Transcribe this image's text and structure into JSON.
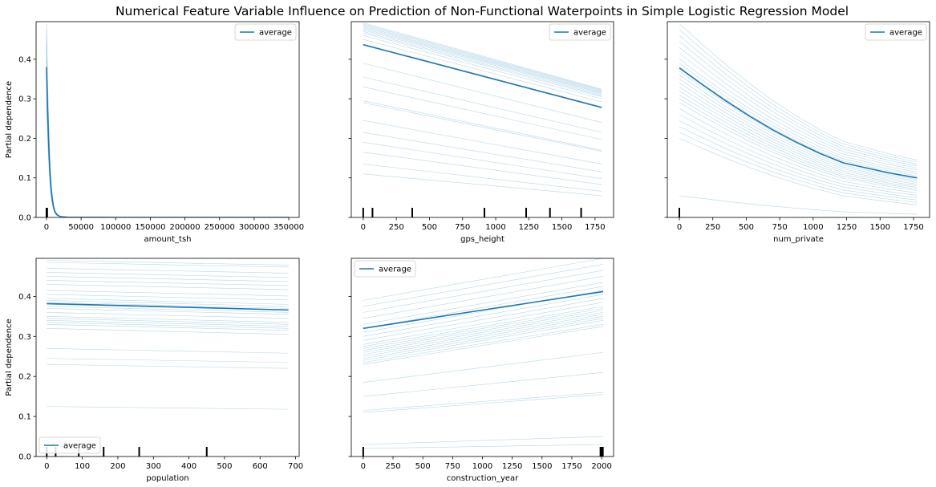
{
  "figure": {
    "title": "Numerical Feature Variable Influence on Prediction of Non-Functional Waterpoints in Simple Logistic Regression Model"
  },
  "colors": {
    "ice": "#9ecae1",
    "average": "#1f77b4",
    "rug": "#000000",
    "frame": "#000000"
  },
  "chart_data": [
    {
      "type": "line",
      "feature": "amount_tsh",
      "xlabel": "amount_tsh",
      "ylabel": "Partial dependence",
      "xlim": [
        -15000,
        365000
      ],
      "ylim": [
        0,
        0.495
      ],
      "xticks": [
        0,
        50000,
        100000,
        150000,
        200000,
        250000,
        300000,
        350000
      ],
      "yticks": [
        0.0,
        0.1,
        0.2,
        0.3,
        0.4
      ],
      "show_yticklabels": true,
      "legend": {
        "label": "average",
        "position": "top-right"
      },
      "series": [
        {
          "name": "average",
          "x": [
            0,
            2000,
            4000,
            6000,
            8000,
            10000,
            12000,
            15000,
            20000,
            30000,
            50000,
            100000,
            350000
          ],
          "y": [
            0.38,
            0.25,
            0.15,
            0.085,
            0.05,
            0.028,
            0.015,
            0.007,
            0.002,
            0.0005,
            0.0001,
            0,
            0
          ]
        }
      ],
      "ice_curves": {
        "x": [
          0,
          2000,
          4000,
          6000,
          8000,
          10000,
          12000,
          15000,
          20000,
          30000,
          50000,
          100000,
          350000
        ],
        "starts": [
          0.49,
          0.475,
          0.46,
          0.45,
          0.44,
          0.43,
          0.42,
          0.41,
          0.4,
          0.39,
          0.385,
          0.38,
          0.375,
          0.37,
          0.36,
          0.35,
          0.34,
          0.33,
          0.32,
          0.31,
          0.3,
          0.29,
          0.28
        ]
      },
      "rug": [
        0,
        50,
        200,
        500,
        1000
      ]
    },
    {
      "type": "line",
      "feature": "gps_height",
      "xlabel": "gps_height",
      "ylabel": "",
      "xlim": [
        -90,
        1890
      ],
      "ylim": [
        0,
        0.495
      ],
      "xticks": [
        0,
        250,
        500,
        750,
        1000,
        1250,
        1500,
        1750
      ],
      "yticks": [
        0.0,
        0.1,
        0.2,
        0.3,
        0.4
      ],
      "show_yticklabels": false,
      "legend": {
        "label": "average",
        "position": "top-right"
      },
      "series": [
        {
          "name": "average",
          "x": [
            0,
            1800
          ],
          "y": [
            0.437,
            0.278
          ]
        }
      ],
      "ice_curves": {
        "x": [
          0,
          1800
        ],
        "starts": [
          0.492,
          0.489,
          0.486,
          0.483,
          0.48,
          0.477,
          0.474,
          0.47,
          0.466,
          0.46,
          0.45,
          0.435,
          0.39,
          0.355,
          0.33,
          0.295,
          0.29,
          0.245,
          0.215,
          0.19,
          0.165,
          0.135,
          0.11
        ],
        "ends": [
          0.324,
          0.322,
          0.32,
          0.318,
          0.316,
          0.314,
          0.311,
          0.308,
          0.305,
          0.3,
          0.292,
          0.28,
          0.24,
          0.215,
          0.197,
          0.17,
          0.167,
          0.135,
          0.115,
          0.098,
          0.083,
          0.066,
          0.055
        ]
      },
      "rug": [
        0,
        70,
        370,
        915,
        1230,
        1410,
        1645
      ]
    },
    {
      "type": "line",
      "feature": "num_private",
      "xlabel": "num_private",
      "ylabel": "",
      "xlim": [
        -90,
        1870
      ],
      "ylim": [
        0,
        0.495
      ],
      "xticks": [
        0,
        250,
        500,
        750,
        1000,
        1250,
        1500,
        1750
      ],
      "yticks": [
        0.0,
        0.1,
        0.2,
        0.3,
        0.4
      ],
      "show_yticklabels": false,
      "legend": {
        "label": "average",
        "position": "top-right"
      },
      "series": [
        {
          "name": "average",
          "x": [
            0,
            175,
            350,
            525,
            700,
            875,
            1050,
            1225,
            1400,
            1575,
            1776
          ],
          "y": [
            0.378,
            0.335,
            0.294,
            0.256,
            0.221,
            0.19,
            0.162,
            0.138,
            0.125,
            0.112,
            0.1
          ]
        }
      ],
      "ice_curves": {
        "x": [
          0,
          175,
          350,
          525,
          700,
          875,
          1050,
          1225,
          1400,
          1575,
          1776
        ],
        "starts": [
          0.49,
          0.475,
          0.46,
          0.445,
          0.43,
          0.415,
          0.4,
          0.39,
          0.38,
          0.37,
          0.36,
          0.35,
          0.34,
          0.33,
          0.32,
          0.31,
          0.3,
          0.29,
          0.275,
          0.26,
          0.245,
          0.23,
          0.215,
          0.2,
          0.055
        ],
        "ends": [
          0.145,
          0.14,
          0.135,
          0.13,
          0.125,
          0.12,
          0.115,
          0.11,
          0.105,
          0.1,
          0.096,
          0.092,
          0.088,
          0.084,
          0.08,
          0.076,
          0.072,
          0.068,
          0.062,
          0.056,
          0.05,
          0.044,
          0.038,
          0.032,
          0.008
        ]
      },
      "rug": [
        0
      ]
    },
    {
      "type": "line",
      "feature": "population",
      "xlabel": "population",
      "ylabel": "Partial dependence",
      "xlim": [
        -30,
        710
      ],
      "ylim": [
        0,
        0.495
      ],
      "xticks": [
        0,
        100,
        200,
        300,
        400,
        500,
        600,
        700
      ],
      "yticks": [
        0.0,
        0.1,
        0.2,
        0.3,
        0.4
      ],
      "show_yticklabels": true,
      "legend": {
        "label": "average",
        "position": "bottom-left"
      },
      "series": [
        {
          "name": "average",
          "x": [
            0,
            680
          ],
          "y": [
            0.382,
            0.366
          ]
        }
      ],
      "ice_curves": {
        "x": [
          0,
          680
        ],
        "starts": [
          0.49,
          0.485,
          0.47,
          0.46,
          0.45,
          0.44,
          0.43,
          0.415,
          0.405,
          0.395,
          0.39,
          0.385,
          0.38,
          0.375,
          0.37,
          0.36,
          0.35,
          0.345,
          0.34,
          0.335,
          0.33,
          0.32,
          0.27,
          0.245,
          0.23,
          0.125
        ],
        "ends": [
          0.478,
          0.473,
          0.458,
          0.447,
          0.437,
          0.427,
          0.417,
          0.401,
          0.391,
          0.38,
          0.375,
          0.37,
          0.365,
          0.36,
          0.355,
          0.345,
          0.335,
          0.33,
          0.325,
          0.32,
          0.315,
          0.305,
          0.258,
          0.235,
          0.22,
          0.118
        ]
      },
      "rug": [
        0,
        25,
        90,
        160,
        260,
        450
      ]
    },
    {
      "type": "line",
      "feature": "construction_year",
      "xlabel": "construction_year",
      "ylabel": "",
      "xlim": [
        -100,
        2100
      ],
      "ylim": [
        0,
        0.495
      ],
      "xticks": [
        0,
        250,
        500,
        750,
        1000,
        1250,
        1500,
        1750,
        2000
      ],
      "yticks": [
        0.0,
        0.1,
        0.2,
        0.3,
        0.4
      ],
      "show_yticklabels": false,
      "legend": {
        "label": "average",
        "position": "top-left"
      },
      "series": [
        {
          "name": "average",
          "x": [
            0,
            2013
          ],
          "y": [
            0.32,
            0.412
          ]
        }
      ],
      "ice_curves": {
        "x": [
          0,
          2013
        ],
        "starts": [
          0.39,
          0.375,
          0.36,
          0.345,
          0.33,
          0.32,
          0.31,
          0.3,
          0.29,
          0.28,
          0.275,
          0.27,
          0.265,
          0.26,
          0.255,
          0.25,
          0.245,
          0.24,
          0.235,
          0.23,
          0.185,
          0.15,
          0.115,
          0.11,
          0.03,
          0.02
        ],
        "ends": [
          0.495,
          0.48,
          0.465,
          0.45,
          0.435,
          0.425,
          0.415,
          0.405,
          0.395,
          0.385,
          0.375,
          0.37,
          0.365,
          0.36,
          0.355,
          0.35,
          0.345,
          0.34,
          0.33,
          0.325,
          0.26,
          0.21,
          0.16,
          0.155,
          0.05,
          0.03
        ]
      },
      "rug": [
        0,
        1990,
        1995,
        2000,
        2005,
        2010
      ]
    }
  ]
}
